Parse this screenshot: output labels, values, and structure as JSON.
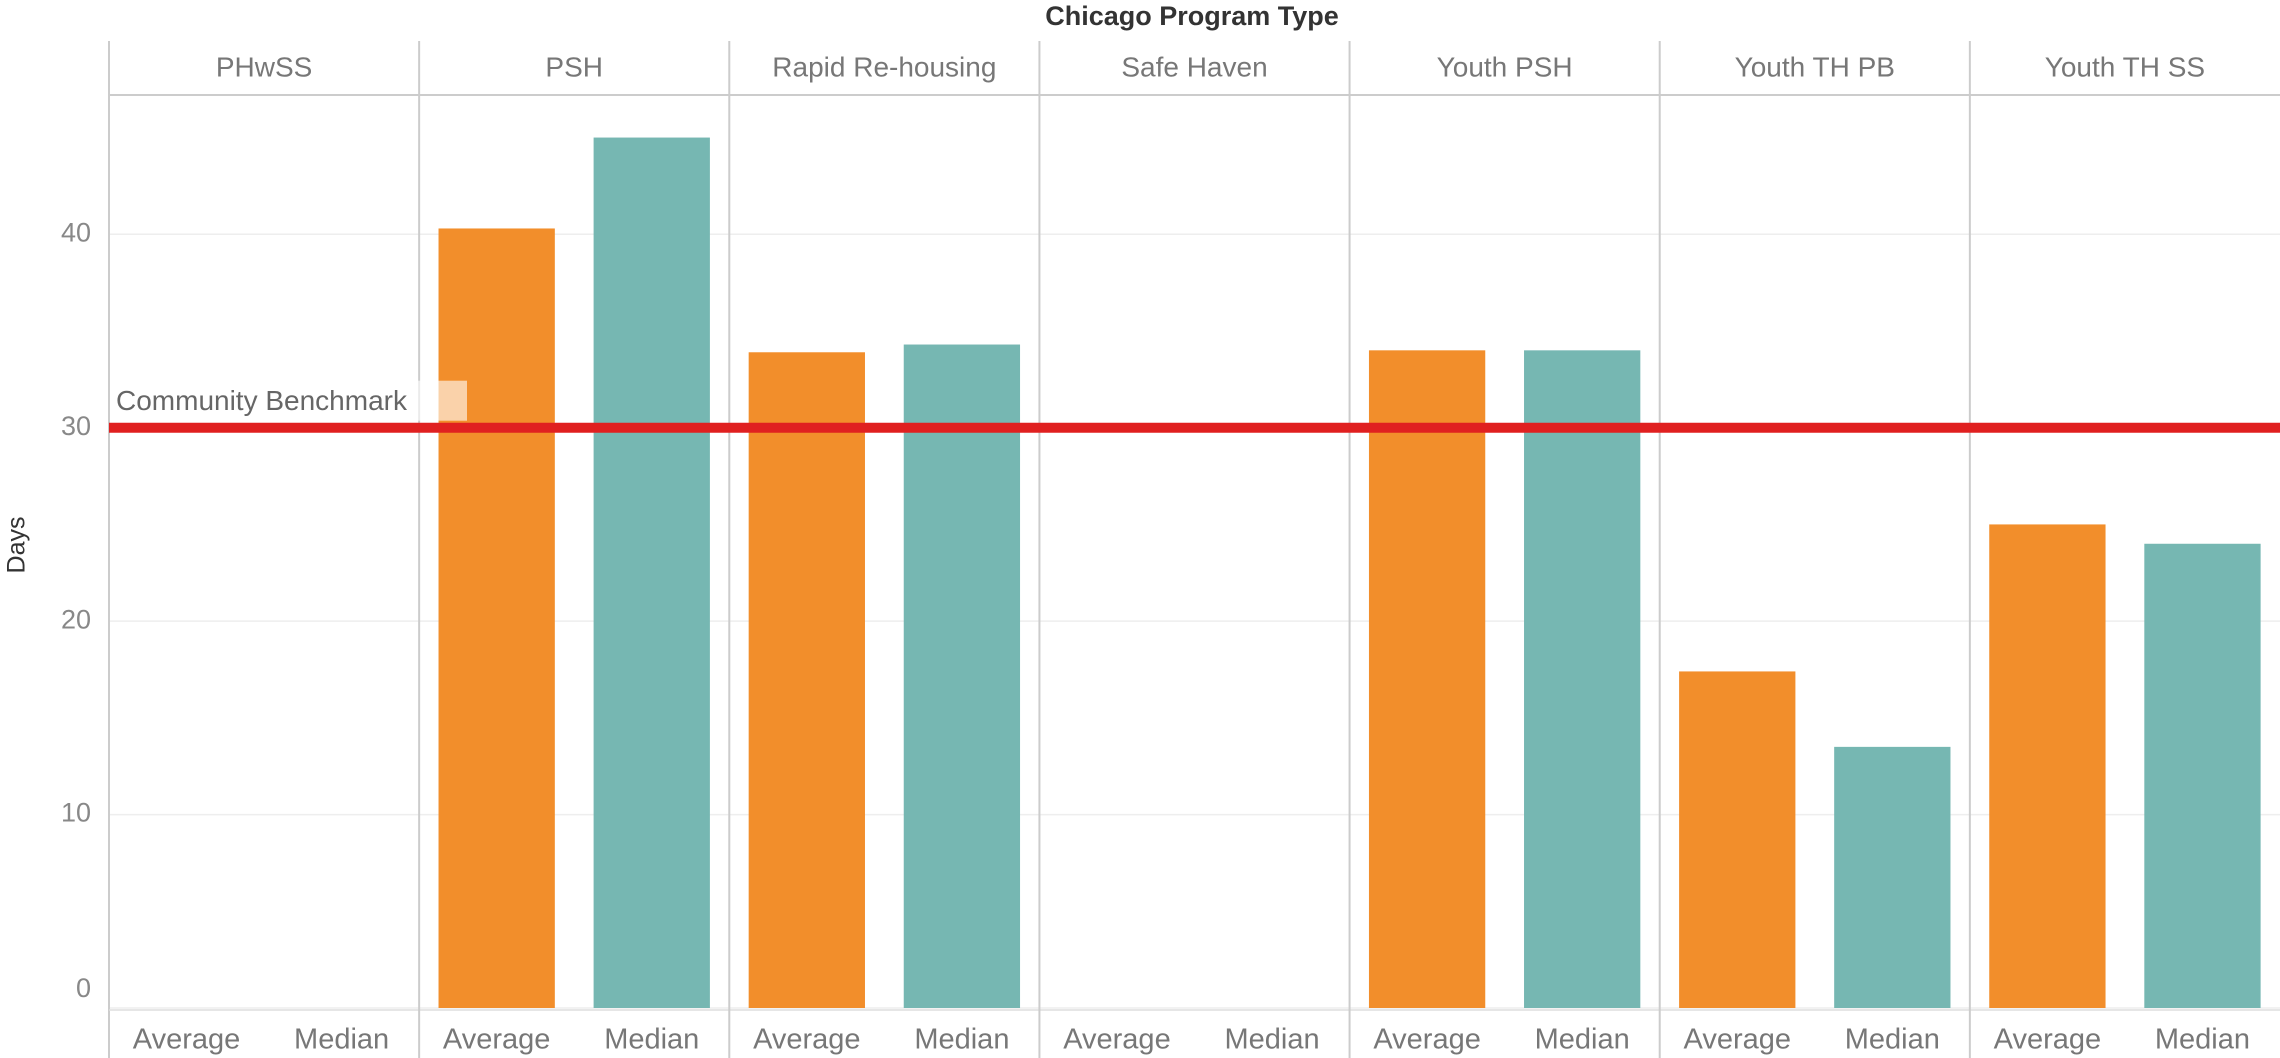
{
  "chart_data": {
    "type": "bar",
    "title": "Chicago Program Type",
    "y_label": "Days",
    "categories": [
      "PHwSS",
      "PSH",
      "Rapid Re-housing",
      "Safe Haven",
      "Youth PSH",
      "Youth TH PB",
      "Youth TH SS"
    ],
    "series": [
      {
        "name": "Average",
        "color": "#f28e2b",
        "values": [
          null,
          40.3,
          33.9,
          null,
          34.0,
          17.4,
          25.0
        ]
      },
      {
        "name": "Median",
        "color": "#76b7b2",
        "values": [
          null,
          45.0,
          34.3,
          null,
          34.0,
          13.5,
          24.0
        ]
      }
    ],
    "ylim": [
      0,
      47.2
    ],
    "yticks": [
      0,
      10,
      20,
      30,
      40
    ],
    "grid": true,
    "reference_line": {
      "value": 30,
      "label": "Community Benchmark",
      "color": "#e02020"
    }
  }
}
